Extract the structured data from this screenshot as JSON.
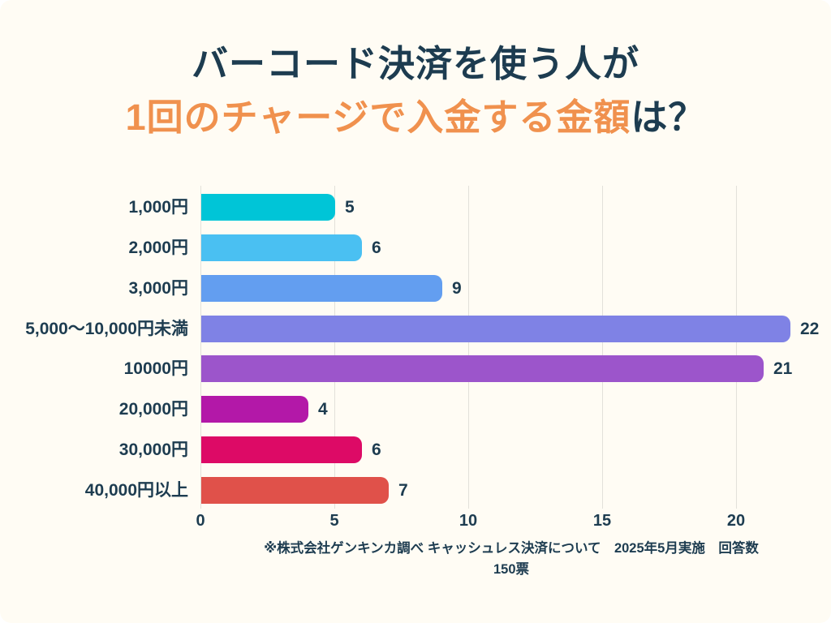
{
  "page": {
    "background_color": "#fffcf4",
    "text_color": "#1d3c50",
    "accent_color": "#f0914e",
    "gridline_color": "#e3e1da"
  },
  "title": {
    "line1": "バーコード決済を使う人が",
    "line2_highlight": "1回のチャージで入金する金額",
    "line2_suffix": "は？"
  },
  "chart_data": {
    "type": "bar",
    "orientation": "horizontal",
    "title": "バーコード決済を使う人が1回のチャージで入金する金額は？",
    "categories": [
      "1,000円",
      "2,000円",
      "3,000円",
      "5,000〜10,000円未満",
      "10000円",
      "20,000円",
      "30,000円",
      "40,000円以上"
    ],
    "values": [
      5,
      6,
      9,
      22,
      21,
      4,
      6,
      7
    ],
    "bar_colors": [
      "#00c5d7",
      "#4ac0f2",
      "#639ef0",
      "#7f82e5",
      "#9c55cb",
      "#b318a8",
      "#dd0a66",
      "#e0514a"
    ],
    "xticks": [
      0,
      5,
      10,
      15,
      20
    ],
    "xlim": [
      0,
      23.5
    ],
    "xlabel": "",
    "ylabel": "",
    "grid": true,
    "value_labels_shown": true,
    "legend": "none"
  },
  "footer": {
    "line1": "※株式会社ゲンキンカ調べ キャッシュレス決済について　2025年5月実施　回答数",
    "line2": "150票"
  }
}
